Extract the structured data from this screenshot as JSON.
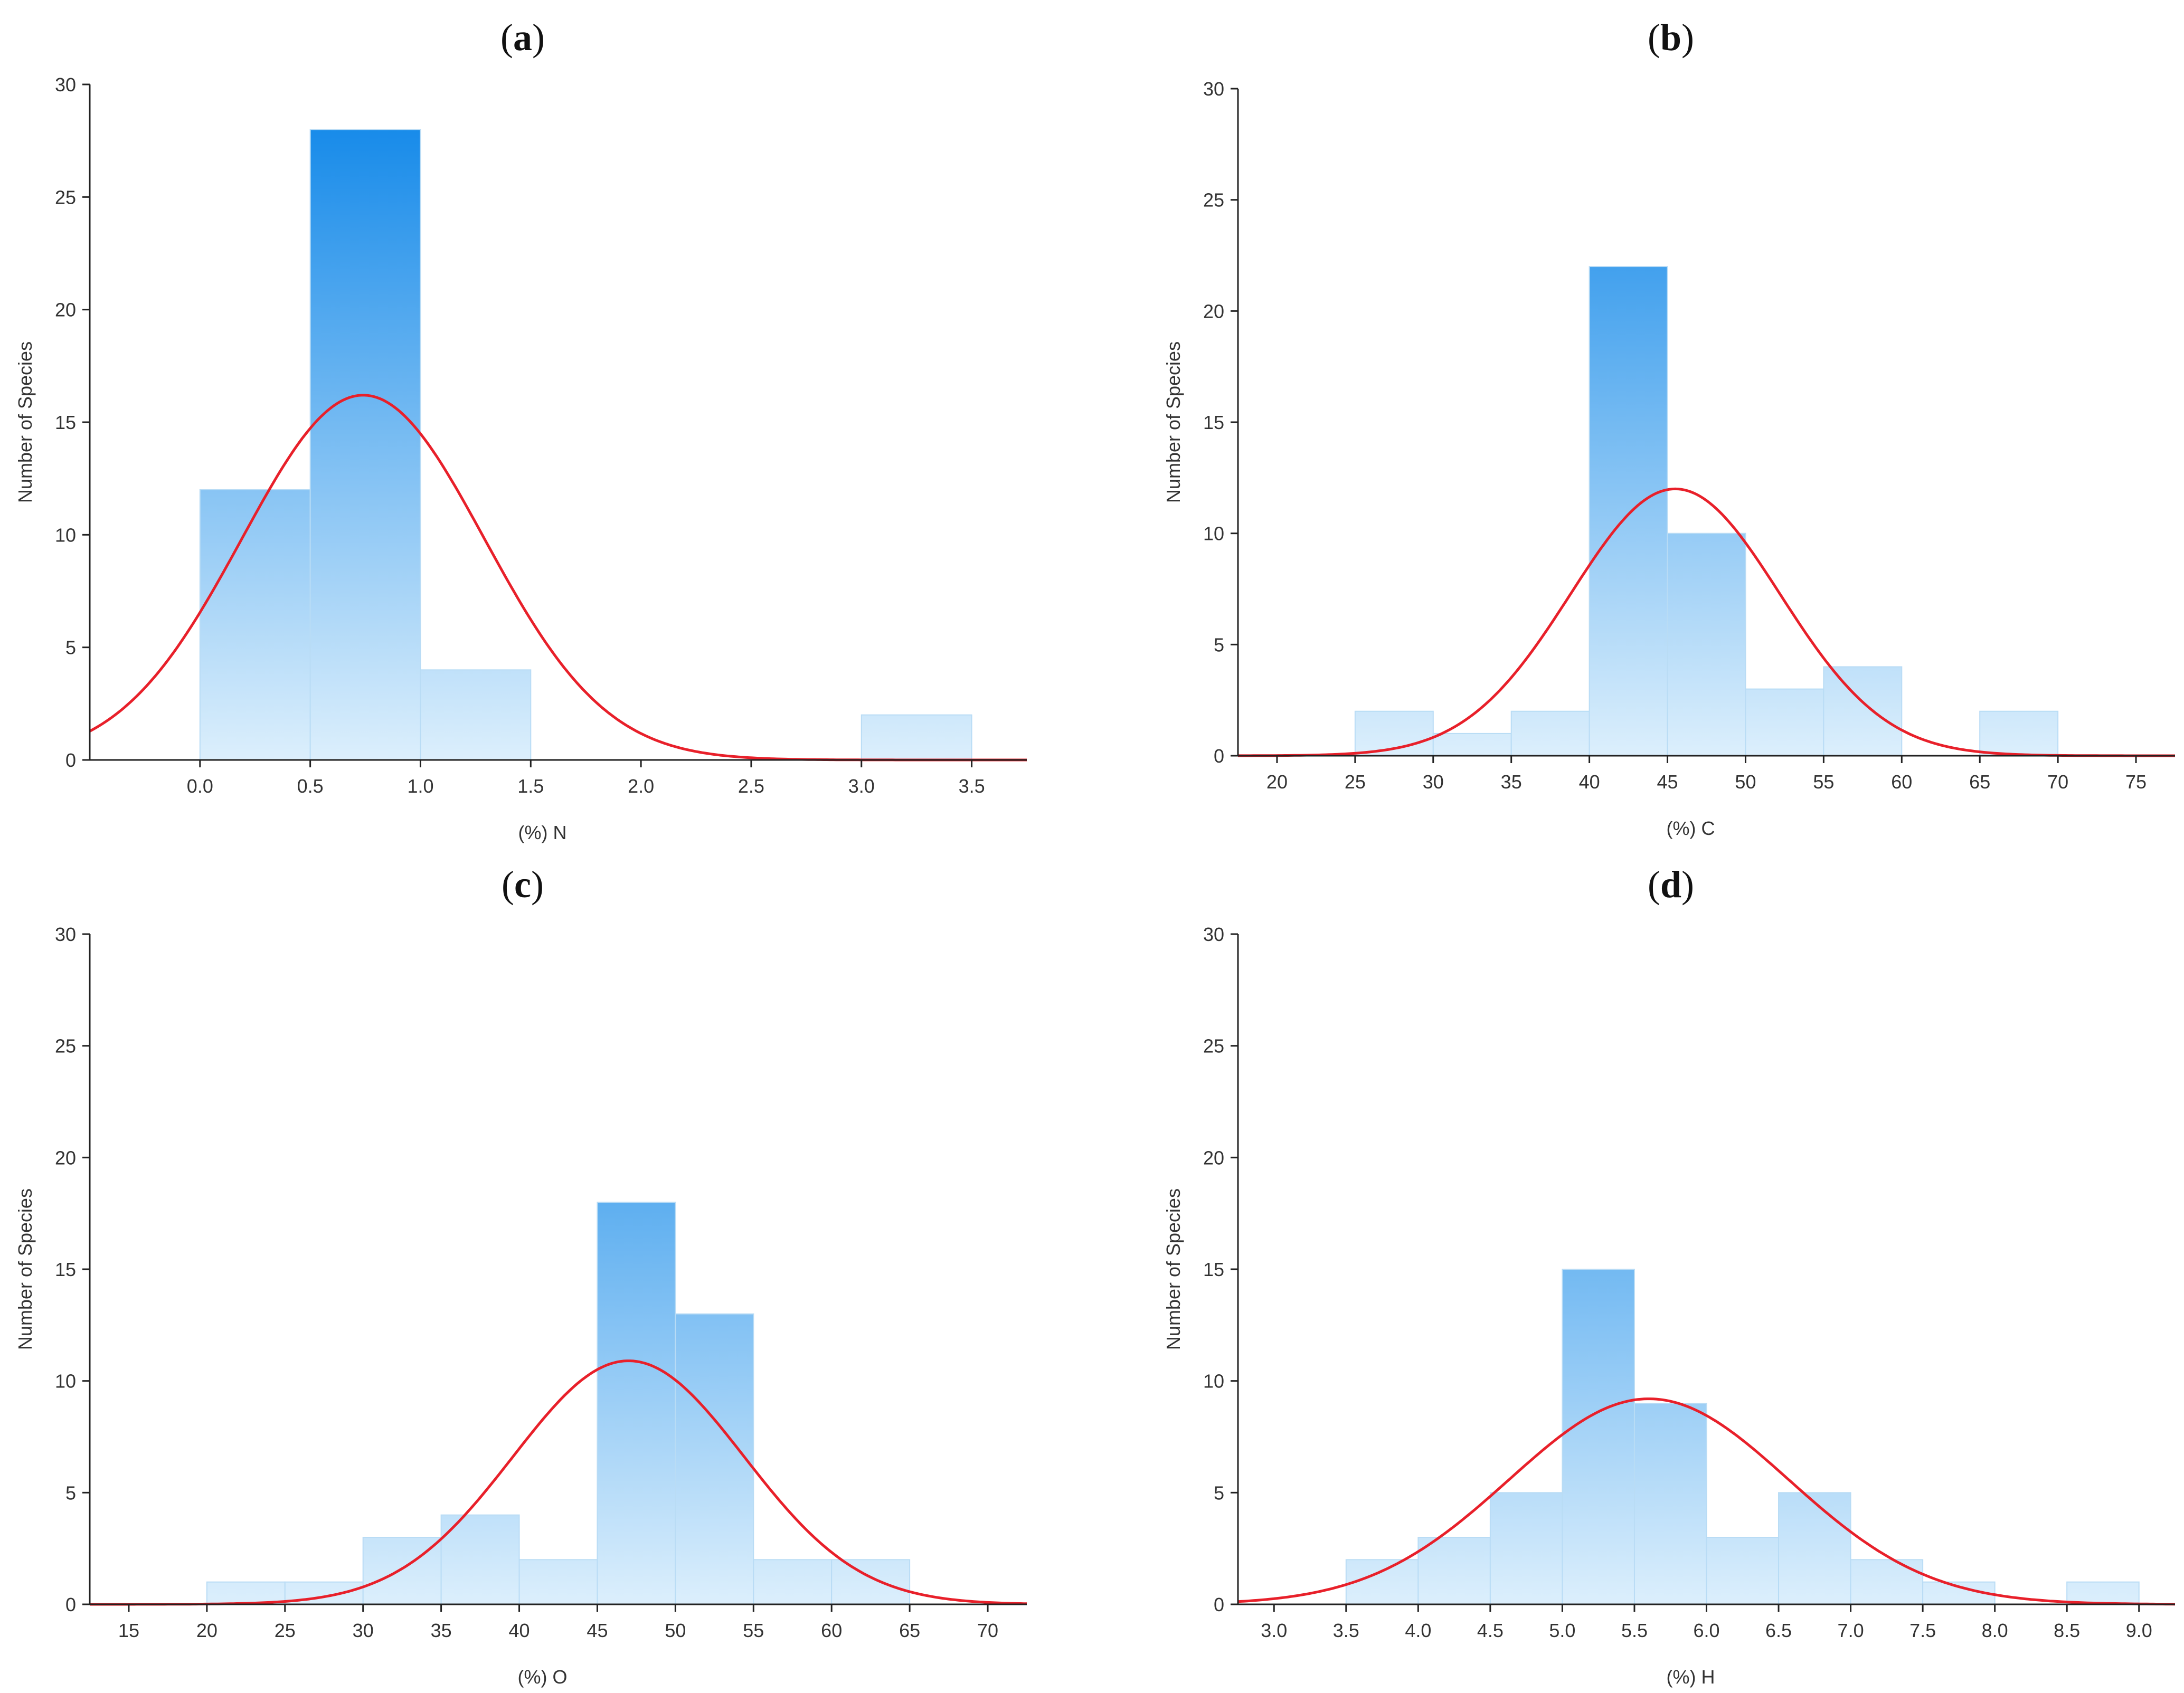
{
  "chart_data": [
    {
      "type": "bar",
      "panel_label": "a",
      "xlabel": "(%) N",
      "ylabel": "Number of Species",
      "xlim": [
        -0.5,
        3.75
      ],
      "ylim": [
        0,
        30
      ],
      "xticks": [
        "0.0",
        "0.5",
        "1.0",
        "1.5",
        "2.0",
        "2.5",
        "3.0",
        "3.5"
      ],
      "xtick_values": [
        0.0,
        0.5,
        1.0,
        1.5,
        2.0,
        2.5,
        3.0,
        3.5
      ],
      "yticks": [
        "0",
        "5",
        "10",
        "15",
        "20",
        "25",
        "30"
      ],
      "bins": [
        [
          0.0,
          0.5
        ],
        [
          0.5,
          1.0
        ],
        [
          1.0,
          1.5
        ],
        [
          1.5,
          2.0
        ],
        [
          2.0,
          2.5
        ],
        [
          2.5,
          3.0
        ],
        [
          3.0,
          3.5
        ]
      ],
      "values": [
        12,
        28,
        4,
        0,
        0,
        0,
        2
      ],
      "normal_curve": {
        "mean": 0.74,
        "sd": 0.55,
        "peak": 16.2
      }
    },
    {
      "type": "bar",
      "panel_label": "b",
      "xlabel": "(%) C",
      "ylabel": "Number of Species",
      "xlim": [
        17.5,
        77.5
      ],
      "ylim": [
        0,
        30
      ],
      "xticks": [
        "20",
        "25",
        "30",
        "35",
        "40",
        "45",
        "50",
        "55",
        "60",
        "65",
        "70",
        "75"
      ],
      "xtick_values": [
        20,
        25,
        30,
        35,
        40,
        45,
        50,
        55,
        60,
        65,
        70,
        75
      ],
      "yticks": [
        "0",
        "5",
        "10",
        "15",
        "20",
        "25",
        "30"
      ],
      "bins": [
        [
          25,
          30
        ],
        [
          30,
          35
        ],
        [
          35,
          40
        ],
        [
          40,
          45
        ],
        [
          45,
          50
        ],
        [
          50,
          55
        ],
        [
          55,
          60
        ],
        [
          60,
          65
        ],
        [
          65,
          70
        ]
      ],
      "values": [
        2,
        1,
        2,
        22,
        10,
        3,
        4,
        0,
        2
      ],
      "normal_curve": {
        "mean": 45.5,
        "sd": 6.7,
        "peak": 12.0
      }
    },
    {
      "type": "bar",
      "panel_label": "c",
      "xlabel": "(%) O",
      "ylabel": "Number of Species",
      "xlim": [
        12.5,
        72.5
      ],
      "ylim": [
        0,
        30
      ],
      "xticks": [
        "15",
        "20",
        "25",
        "30",
        "35",
        "40",
        "45",
        "50",
        "55",
        "60",
        "65",
        "70"
      ],
      "xtick_values": [
        15,
        20,
        25,
        30,
        35,
        40,
        45,
        50,
        55,
        60,
        65,
        70
      ],
      "yticks": [
        "0",
        "5",
        "10",
        "15",
        "20",
        "25",
        "30"
      ],
      "bins": [
        [
          20,
          25
        ],
        [
          25,
          30
        ],
        [
          30,
          35
        ],
        [
          35,
          40
        ],
        [
          40,
          45
        ],
        [
          45,
          50
        ],
        [
          50,
          55
        ],
        [
          55,
          60
        ],
        [
          60,
          65
        ]
      ],
      "values": [
        1,
        1,
        3,
        4,
        2,
        18,
        13,
        2,
        2
      ],
      "normal_curve": {
        "mean": 47.0,
        "sd": 7.4,
        "peak": 10.9
      }
    },
    {
      "type": "bar",
      "panel_label": "d",
      "xlabel": "(%) H",
      "ylabel": "Number of Species",
      "xlim": [
        2.75,
        9.25
      ],
      "ylim": [
        0,
        30
      ],
      "xticks": [
        "3.0",
        "3.5",
        "4.0",
        "4.5",
        "5.0",
        "5.5",
        "6.0",
        "6.5",
        "7.0",
        "7.5",
        "8.0",
        "8.5",
        "9.0"
      ],
      "xtick_values": [
        3.0,
        3.5,
        4.0,
        4.5,
        5.0,
        5.5,
        6.0,
        6.5,
        7.0,
        7.5,
        8.0,
        8.5,
        9.0
      ],
      "yticks": [
        "0",
        "5",
        "10",
        "15",
        "20",
        "25",
        "30"
      ],
      "bins": [
        [
          3.5,
          4.0
        ],
        [
          4.0,
          4.5
        ],
        [
          4.5,
          5.0
        ],
        [
          5.0,
          5.5
        ],
        [
          5.5,
          6.0
        ],
        [
          6.0,
          6.5
        ],
        [
          6.5,
          7.0
        ],
        [
          7.0,
          7.5
        ],
        [
          7.5,
          8.0
        ],
        [
          8.0,
          8.5
        ],
        [
          8.5,
          9.0
        ]
      ],
      "values": [
        2,
        3,
        5,
        15,
        9,
        3,
        5,
        2,
        1,
        0,
        1
      ],
      "normal_curve": {
        "mean": 5.6,
        "sd": 0.97,
        "peak": 9.2
      }
    }
  ],
  "colors": {
    "bar_dark": "#0a84e8",
    "bar_light": "#dceffc",
    "bar_edge": "#b9dcf5",
    "curve": "#e8202a",
    "axis": "#222222"
  }
}
